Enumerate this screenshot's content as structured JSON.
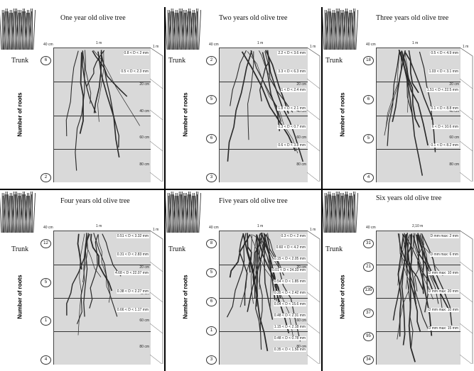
{
  "panels": [
    {
      "title": "One year old olive tree",
      "trunk_label": "Trunk",
      "y_axis_label": "Number of roots",
      "depth_top_label": "40 cm",
      "width_label": "1 m",
      "side_label": "1 m",
      "bubbles": [
        "6",
        "2"
      ],
      "depth_labels": [
        "20 cm",
        "40 cm",
        "60 cm",
        "80 cm"
      ],
      "annotations": [
        "0.8 < D < 2 mm",
        "0.5 < D < 2.3 mm"
      ]
    },
    {
      "title": "Two years old olive tree",
      "trunk_label": "Trunk",
      "y_axis_label": "Number of roots",
      "depth_top_label": "40 cm",
      "width_label": "1 m",
      "side_label": "1 m",
      "bubbles": [
        "2",
        "5",
        "6",
        "3"
      ],
      "depth_labels": [
        "20 cm",
        "40 cm",
        "60 cm",
        "80 cm"
      ],
      "annotations": [
        "2.2 < D < 3.6 mm",
        "3.3 < D < 6.3 mm",
        "1 < D < 2.4 mm",
        "1.8 < D < 2.1 mm",
        "0.3 < D < 0.7 mm",
        "0.6 < D < 3.8 mm"
      ]
    },
    {
      "title": "Three years old olive tree",
      "trunk_label": "Trunk",
      "y_axis_label": "Number of roots",
      "depth_top_label": "40 cm",
      "width_label": "1 m",
      "side_label": "1 m",
      "bubbles": [
        "18",
        "6",
        "5",
        "4"
      ],
      "depth_labels": [
        "20 cm",
        "40 cm",
        "60 cm",
        "80 cm"
      ],
      "annotations": [
        "0.5 < D < 4.9 mm",
        "1.03 < D < 3.1 mm",
        "1.51 < D < 22.5 mm",
        "0.1 < D < 8.8 mm",
        "6 < D < 10.6 mm",
        "0.1 < D < 8.2 mm"
      ]
    },
    {
      "title": "Four years old olive tree",
      "trunk_label": "Trunk",
      "y_axis_label": "Number of roots",
      "depth_top_label": "40 cm",
      "width_label": "1 m",
      "side_label": "1 m",
      "bubbles": [
        "12",
        "5",
        "1",
        "4"
      ],
      "depth_labels": [
        "20 cm",
        "40 cm",
        "60 cm",
        "80 cm"
      ],
      "annotations": [
        "0.51 < D < 3.32 mm",
        "0.31 < D < 2.83 mm",
        "4.68 < D < 22.07 mm",
        "0.38 < D < 2.27 mm",
        "0.66 < D < 1.17 mm"
      ]
    },
    {
      "title": "Five years old olive tree",
      "trunk_label": "Trunk",
      "y_axis_label": "Number of roots",
      "depth_top_label": "40 cm",
      "width_label": "1 m",
      "side_label": "1 m",
      "bubbles": [
        "8",
        "5",
        "6",
        "1",
        "3"
      ],
      "depth_labels": [
        "20 cm",
        "40 cm",
        "60 cm",
        "80 cm"
      ],
      "annotations": [
        "0.3 < D < 2 mm",
        "0.60 < D < 4.2 mm",
        "0.15 < D < 2.05 mm",
        "0.01 < D < 24.33 mm",
        "0.54 < D < 1.85 mm",
        "0.35 < D < 2.42 mm",
        "0.04 < D < 15.6 mm",
        "0.48 < D < 2.31 mm",
        "1.15 < D < 2.18 mm",
        "0.48 < D < 0.78 mm",
        "0.35 < D < 1.56 mm"
      ]
    },
    {
      "title": "Six years old olive tree",
      "trunk_label": "Trunk",
      "y_axis_label": "Number of roots",
      "depth_top_label": "40 cm",
      "width_label": "2,10 m",
      "side_label": "",
      "bubbles": [
        "31",
        "21",
        "135",
        "37",
        "95",
        "34"
      ],
      "depth_labels": [],
      "annotations": [
        "D mm max: 2 mm",
        "D mm max: 6 mm",
        "D mm max: 10 mm",
        "D mm max: 20 mm",
        "D mm max: 10 mm",
        "D mm max: 15 mm"
      ]
    }
  ],
  "colors": {
    "soil": "#d9d9d9",
    "roots": "#2a2a2a",
    "grass": "#333333"
  }
}
